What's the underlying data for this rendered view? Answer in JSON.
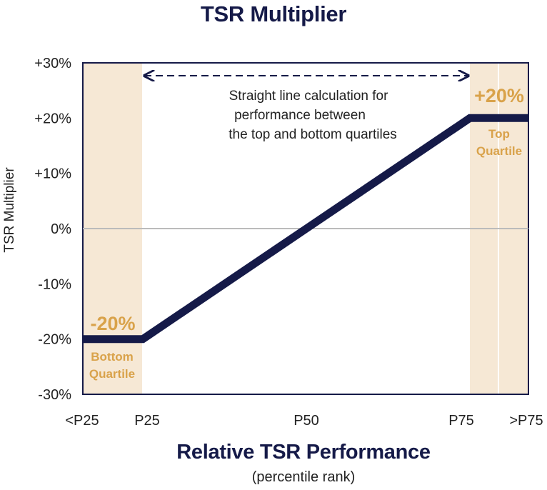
{
  "chart_data": {
    "type": "line",
    "title": "TSR Multiplier",
    "xlabel": "Relative TSR Performance",
    "xlabel_sub": "(percentile rank)",
    "ylabel": "TSR Multiplier",
    "categories": [
      "<P25",
      "P25",
      "P50",
      "P75",
      ">P75"
    ],
    "y_ticks": [
      "+30%",
      "+20%",
      "+10%",
      "0%",
      "-10%",
      "-20%",
      "-30%"
    ],
    "ylim": [
      -30,
      30
    ],
    "series": [
      {
        "name": "TSR Multiplier",
        "x": [
          "<P25",
          "P25",
          "P50",
          "P75",
          ">P75"
        ],
        "values": [
          -20,
          -20,
          0,
          20,
          20
        ]
      }
    ],
    "annotations": {
      "bottom_value": "-20%",
      "top_value": "+20%",
      "bottom_zone_line1": "Bottom",
      "bottom_zone_line2": "Quartile",
      "top_zone_line1": "Top",
      "top_zone_line2": "Quartile",
      "note_line1": "Straight line calculation for",
      "note_line2": "performance between",
      "note_line3": "the top and bottom quartiles"
    },
    "colors": {
      "line": "#151a48",
      "zone": "#f6e8d5",
      "accent": "#d9a24a",
      "zero_line": "#bbbbbb"
    }
  }
}
